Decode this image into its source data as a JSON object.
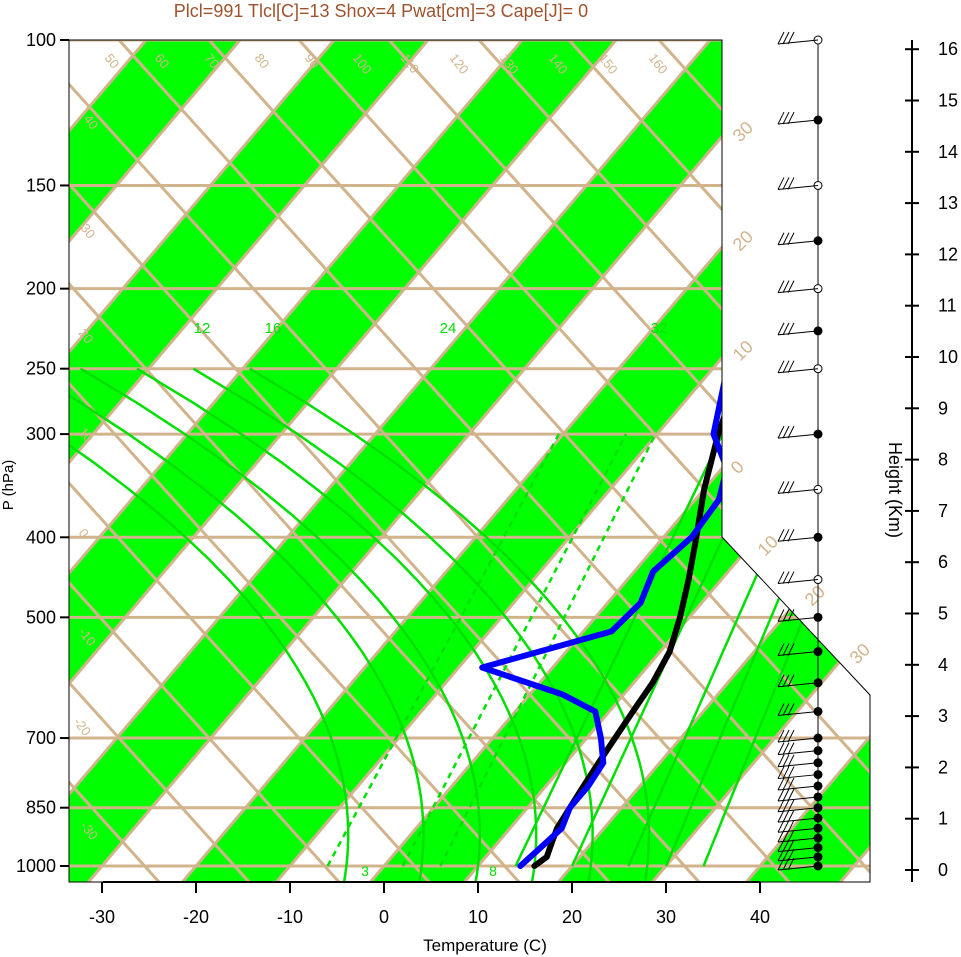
{
  "header": {
    "stats": "Plcl=991 Tlcl[C]=13 Shox=4 Pwat[cm]=3 Cape[J]= 0"
  },
  "axes": {
    "x_label": "Temperature (C)",
    "y_label": "P (hPa)",
    "height_label": "Height (Km)"
  },
  "colors": {
    "header": "#a0522d",
    "band": "#00ff00",
    "iso": "#d2b48c",
    "temp": "#000000",
    "dew": "#0000ff",
    "mixing": "#00e000",
    "moist": "#00e000"
  },
  "chart_data": {
    "type": "skew-t",
    "title": "Plcl=991 Tlcl[C]=13 Shox=4 Pwat[cm]=3 Cape[J]= 0",
    "xlabel": "Temperature (C)",
    "ylabel": "P (hPa)",
    "xlim": [
      -35,
      45
    ],
    "pressure_ticks": [
      100,
      150,
      200,
      250,
      300,
      400,
      500,
      700,
      850,
      1000
    ],
    "temperature_ticks": [
      -30,
      -20,
      -10,
      0,
      10,
      20,
      30,
      40
    ],
    "height_ticks_km": [
      0,
      1,
      2,
      3,
      4,
      5,
      6,
      7,
      8,
      9,
      10,
      11,
      12,
      13,
      14,
      15,
      16
    ],
    "skewed_isotherm_labels": [
      -30,
      -20,
      -10,
      0,
      10,
      20,
      30,
      40,
      50,
      60,
      70,
      80,
      90,
      100,
      110,
      120,
      130,
      140,
      150,
      160
    ],
    "right_isotherm_labels": [
      30,
      20,
      10,
      0,
      10,
      20,
      30
    ],
    "mixing_ratio_labels": [
      12,
      16,
      24,
      32
    ],
    "moist_labels": [
      3,
      8
    ],
    "series": [
      {
        "name": "temperature",
        "values": [
          {
            "p": 1000,
            "t": 16.0
          },
          {
            "p": 975,
            "t": 16.5
          },
          {
            "p": 950,
            "t": 16.0
          },
          {
            "p": 925,
            "t": 15.5
          },
          {
            "p": 900,
            "t": 15.0
          },
          {
            "p": 850,
            "t": 14.5
          },
          {
            "p": 800,
            "t": 14.0
          },
          {
            "p": 750,
            "t": 13.5
          },
          {
            "p": 700,
            "t": 13.0
          },
          {
            "p": 650,
            "t": 12.5
          },
          {
            "p": 600,
            "t": 12.0
          },
          {
            "p": 550,
            "t": 11.0
          },
          {
            "p": 500,
            "t": 9.0
          },
          {
            "p": 450,
            "t": 6.5
          },
          {
            "p": 400,
            "t": 3.5
          },
          {
            "p": 350,
            "t": 0.0
          },
          {
            "p": 300,
            "t": -3.5
          },
          {
            "p": 250,
            "t": -7.0
          },
          {
            "p": 225,
            "t": -8.5
          },
          {
            "p": 200,
            "t": -9.0
          },
          {
            "p": 180,
            "t": -7.5
          },
          {
            "p": 150,
            "t": -3.5
          },
          {
            "p": 125,
            "t": 1.0
          },
          {
            "p": 110,
            "t": 3.5
          },
          {
            "p": 100,
            "t": 5.0
          }
        ]
      },
      {
        "name": "dewpoint",
        "values": [
          {
            "p": 1000,
            "t": 14.5
          },
          {
            "p": 950,
            "t": 15.0
          },
          {
            "p": 900,
            "t": 15.5
          },
          {
            "p": 850,
            "t": 14.5
          },
          {
            "p": 800,
            "t": 14.5
          },
          {
            "p": 750,
            "t": 14.0
          },
          {
            "p": 700,
            "t": 11.5
          },
          {
            "p": 650,
            "t": 8.5
          },
          {
            "p": 620,
            "t": 3.5
          },
          {
            "p": 575,
            "t": -7.5
          },
          {
            "p": 520,
            "t": 3.0
          },
          {
            "p": 480,
            "t": 3.5
          },
          {
            "p": 440,
            "t": 2.0
          },
          {
            "p": 400,
            "t": 3.0
          },
          {
            "p": 360,
            "t": 2.5
          },
          {
            "p": 330,
            "t": 0.5
          },
          {
            "p": 300,
            "t": -4.0
          },
          {
            "p": 260,
            "t": -7.5
          },
          {
            "p": 230,
            "t": -10.0
          },
          {
            "p": 210,
            "t": -10.0
          },
          {
            "p": 190,
            "t": -11.5
          },
          {
            "p": 175,
            "t": -15.0
          },
          {
            "p": 160,
            "t": -18.0
          },
          {
            "p": 145,
            "t": -17.5
          },
          {
            "p": 130,
            "t": -14.0
          },
          {
            "p": 115,
            "t": -9.0
          },
          {
            "p": 100,
            "t": -5.0
          }
        ]
      }
    ],
    "wind_levels_hpa": [
      1000,
      975,
      950,
      925,
      900,
      875,
      850,
      825,
      800,
      775,
      750,
      725,
      700,
      650,
      600,
      550,
      500,
      450,
      400,
      350,
      300,
      250,
      225,
      200,
      175,
      150,
      125,
      100
    ],
    "grid": true,
    "legend": "none"
  }
}
